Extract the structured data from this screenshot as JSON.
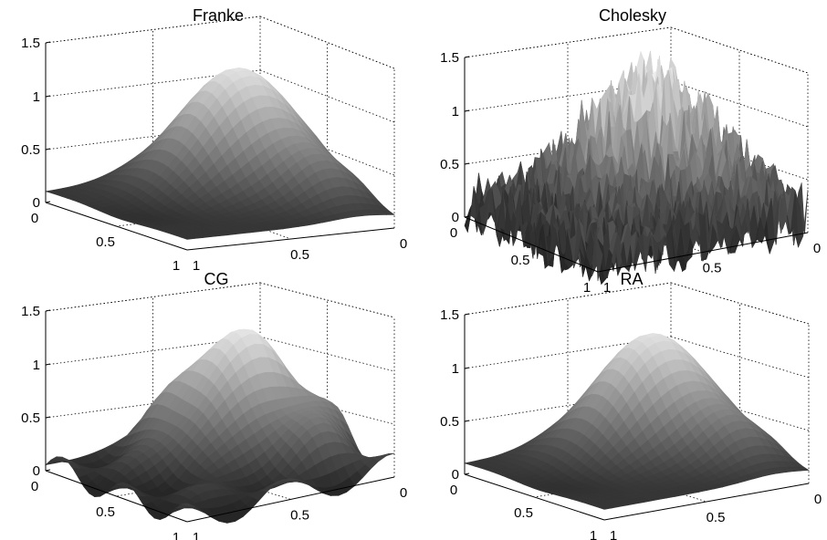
{
  "chart_data": [
    {
      "type": "surface",
      "title": "Franke",
      "surface": "smooth",
      "zlim": [
        0,
        1.5
      ],
      "zticks": [
        "0",
        "0.5",
        "1",
        "1.5"
      ],
      "x_ticks": [
        "0",
        "0.5",
        "1"
      ],
      "y_ticks": [
        "1",
        "0.5",
        "0"
      ],
      "features": {
        "main_peak": 1.22,
        "secondary_bump": 0.68,
        "corner_level": 0.1
      },
      "colormap": "gray"
    },
    {
      "type": "surface",
      "title": "Cholesky",
      "surface": "noisy",
      "zlim": [
        0,
        1.5
      ],
      "zticks": [
        "0",
        "0.5",
        "1",
        "1.5"
      ],
      "x_ticks": [
        "0",
        "0.5",
        "1"
      ],
      "y_ticks": [
        "1",
        "0.5",
        "0"
      ],
      "features": {
        "main_peak": 1.3,
        "noise_amplitude": 0.35
      },
      "colormap": "gray"
    },
    {
      "type": "surface",
      "title": "CG",
      "surface": "oscillating",
      "zlim": [
        0,
        1.5
      ],
      "zticks": [
        "0",
        "0.5",
        "1",
        "1.5"
      ],
      "x_ticks": [
        "0",
        "0.5",
        "1"
      ],
      "y_ticks": [
        "1",
        "0.5",
        "0"
      ],
      "features": {
        "main_peak": 1.22,
        "secondary_bump": 0.68,
        "edge_wiggle": 0.15
      },
      "colormap": "gray"
    },
    {
      "type": "surface",
      "title": "RA",
      "surface": "smooth",
      "zlim": [
        0,
        1.5
      ],
      "zticks": [
        "0",
        "0.5",
        "1",
        "1.5"
      ],
      "x_ticks": [
        "0",
        "0.5",
        "1"
      ],
      "y_ticks": [
        "1",
        "0.5",
        "0"
      ],
      "features": {
        "main_peak": 1.22,
        "secondary_bump": 0.68,
        "corner_level": 0.1
      },
      "colormap": "gray"
    }
  ]
}
